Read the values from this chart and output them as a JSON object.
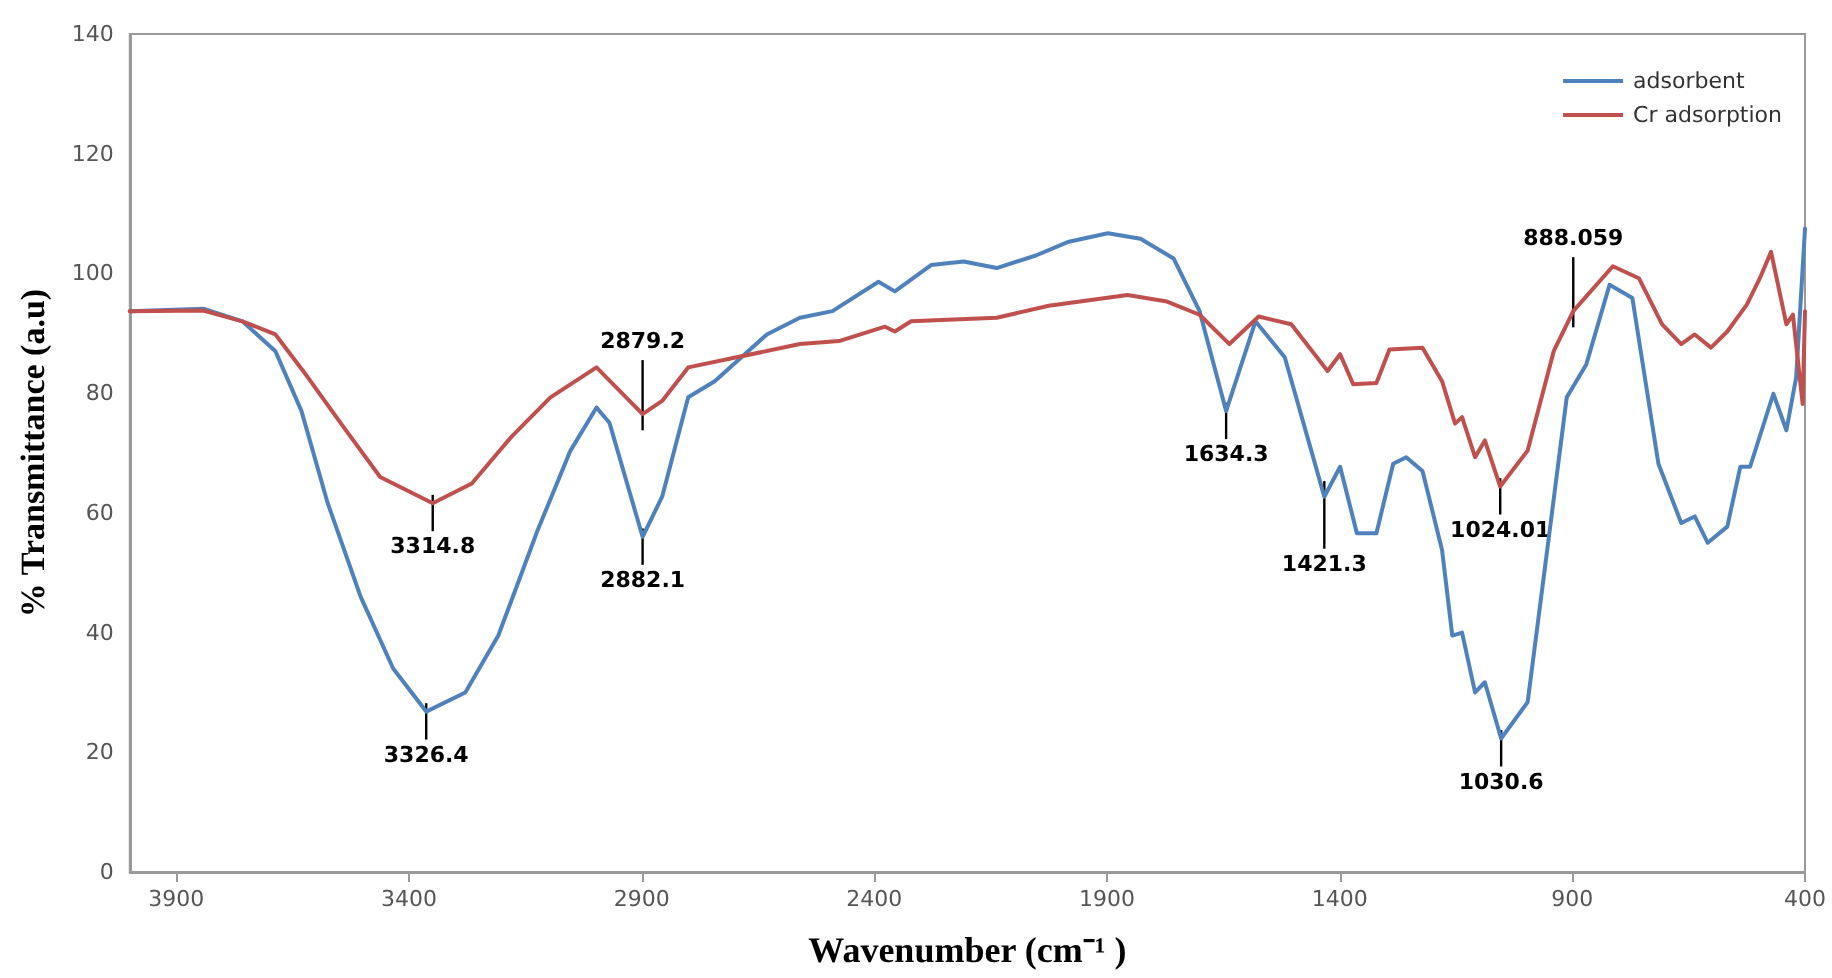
{
  "chart_data": {
    "type": "line",
    "xlabel": "Wavenumber (cm⁻¹ )",
    "ylabel": "% Transmittance (a.u)",
    "xlim": [
      4000,
      400
    ],
    "xticks": [
      3900,
      3400,
      2900,
      2400,
      1900,
      1400,
      900,
      400
    ],
    "ylim": [
      0,
      140
    ],
    "yticks": [
      0,
      20,
      40,
      60,
      80,
      100,
      120,
      140
    ],
    "grid": false,
    "legend": "top right",
    "marker": "none",
    "line_style": "solid",
    "series": [
      {
        "name": "adsorbent",
        "color": "#4f81bd",
        "x": [
          4000,
          3842,
          3758,
          3687,
          3631,
          3575,
          3504,
          3434,
          3363,
          3279,
          3208,
          3124,
          3053,
          2997,
          2969,
          2898,
          2856,
          2800,
          2743,
          2631,
          2560,
          2490,
          2391,
          2356,
          2278,
          2208,
          2137,
          2053,
          1982,
          1898,
          1828,
          1757,
          1701,
          1644,
          1581,
          1518,
          1461,
          1433,
          1399,
          1363,
          1321,
          1285,
          1257,
          1222,
          1180,
          1158,
          1137,
          1109,
          1088,
          1053,
          996,
          954,
          912,
          870,
          820,
          771,
          715,
          666,
          637,
          609,
          567,
          539,
          518,
          468,
          440,
          419,
          400
        ],
        "values": [
          93.7,
          94.1,
          92,
          87,
          77,
          61.7,
          46,
          34,
          26.8,
          30,
          39.5,
          57,
          70.4,
          77.6,
          75,
          56,
          62.7,
          79.3,
          82,
          89.8,
          92.6,
          93.7,
          98.6,
          97,
          101.4,
          102,
          100.9,
          103,
          105.3,
          106.7,
          105.8,
          102.5,
          93.7,
          77,
          92,
          86,
          70.4,
          62.7,
          67.7,
          56.6,
          56.6,
          68.2,
          69.3,
          67,
          53.8,
          39.5,
          40,
          30,
          31.7,
          22.3,
          28.4,
          53.8,
          79.3,
          84.8,
          98.1,
          95.9,
          68.2,
          58.3,
          59.4,
          55,
          57.7,
          67.7,
          67.7,
          79.9,
          73.8,
          82.6,
          107.5
        ]
      },
      {
        "name": "Cr adsorption",
        "color": "#c0504d",
        "x": [
          4000,
          3842,
          3758,
          3687,
          3617,
          3546,
          3462,
          3349,
          3265,
          3180,
          3096,
          2997,
          2898,
          2856,
          2800,
          2701,
          2560,
          2476,
          2377,
          2356,
          2321,
          2137,
          2025,
          1856,
          1771,
          1701,
          1637,
          1574,
          1504,
          1426,
          1399,
          1371,
          1321,
          1293,
          1222,
          1180,
          1152,
          1137,
          1109,
          1088,
          1055,
          996,
          940,
          898,
          813,
          757,
          707,
          666,
          637,
          602,
          567,
          525,
          497,
          473,
          440,
          426,
          405,
          400
        ],
        "values": [
          93.7,
          93.8,
          92,
          89.8,
          82.6,
          74.9,
          66,
          61.6,
          64.9,
          72.7,
          79.3,
          84.3,
          76.5,
          78.7,
          84.3,
          85.9,
          88.2,
          88.7,
          91.1,
          90.3,
          92,
          92.6,
          94.6,
          96.4,
          95.3,
          93.1,
          88.2,
          92.8,
          91.5,
          83.7,
          86.5,
          81.5,
          81.7,
          87.3,
          87.6,
          82,
          74.9,
          76,
          69.3,
          72.1,
          64.4,
          70.4,
          87,
          93.7,
          101.2,
          99.2,
          91.5,
          88.2,
          89.8,
          87.6,
          90.3,
          94.8,
          99.2,
          103.6,
          91.5,
          93.1,
          78.2,
          93.7
        ]
      }
    ],
    "annotations": [
      {
        "text": "3314.8",
        "x": 3349,
        "y": 61.6
      },
      {
        "text": "3326.4",
        "x": 3363,
        "y": 26.8
      },
      {
        "text": "2879.2",
        "x": 2898,
        "y": 76.5
      },
      {
        "text": "2882.1",
        "x": 2898,
        "y": 56
      },
      {
        "text": "1634.3",
        "x": 1644,
        "y": 77
      },
      {
        "text": "1421.3",
        "x": 1433,
        "y": 62.7
      },
      {
        "text": "1024.01",
        "x": 1055,
        "y": 64.4
      },
      {
        "text": "1030.6",
        "x": 1053,
        "y": 22.3
      },
      {
        "text": "888.059",
        "x": 898,
        "y": 93.7
      }
    ]
  }
}
